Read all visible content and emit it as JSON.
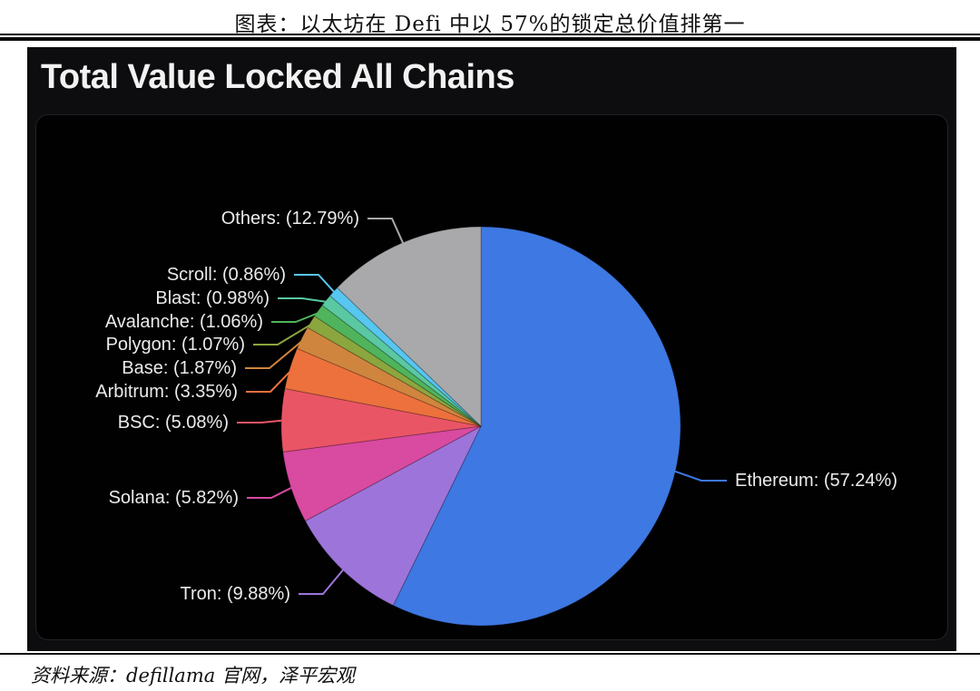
{
  "document": {
    "title": "图表：以太坊在 Defi 中以 57%的锁定总价值排第一",
    "source": "资料来源：defillama 官网，泽平宏观"
  },
  "chart_data": {
    "type": "pie",
    "title": "Total Value Locked All Chains",
    "background": "#010102",
    "legend_position": "callout-labels",
    "start_angle_deg": 0,
    "direction": "clockwise",
    "slices": [
      {
        "label": "Ethereum",
        "value": 57.24,
        "display": "Ethereum: (57.24%)",
        "color": "#3e78e2"
      },
      {
        "label": "Tron",
        "value": 9.88,
        "display": "Tron: (9.88%)",
        "color": "#9d75da"
      },
      {
        "label": "Solana",
        "value": 5.82,
        "display": "Solana: (5.82%)",
        "color": "#d94aa1"
      },
      {
        "label": "BSC",
        "value": 5.08,
        "display": "BSC: (5.08%)",
        "color": "#ea5566"
      },
      {
        "label": "Arbitrum",
        "value": 3.35,
        "display": "Arbitrum: (3.35%)",
        "color": "#ec713d"
      },
      {
        "label": "Base",
        "value": 1.87,
        "display": "Base: (1.87%)",
        "color": "#d0853e"
      },
      {
        "label": "Polygon",
        "value": 1.07,
        "display": "Polygon: (1.07%)",
        "color": "#8ca63f"
      },
      {
        "label": "Avalanche",
        "value": 1.06,
        "display": "Avalanche: (1.06%)",
        "color": "#4fb45c"
      },
      {
        "label": "Blast",
        "value": 0.98,
        "display": "Blast: (0.98%)",
        "color": "#5ac8a2"
      },
      {
        "label": "Scroll",
        "value": 0.86,
        "display": "Scroll: (0.86%)",
        "color": "#57c6f0"
      },
      {
        "label": "Others",
        "value": 12.79,
        "display": "Others: (12.79%)",
        "color": "#a9a9ab"
      }
    ]
  }
}
